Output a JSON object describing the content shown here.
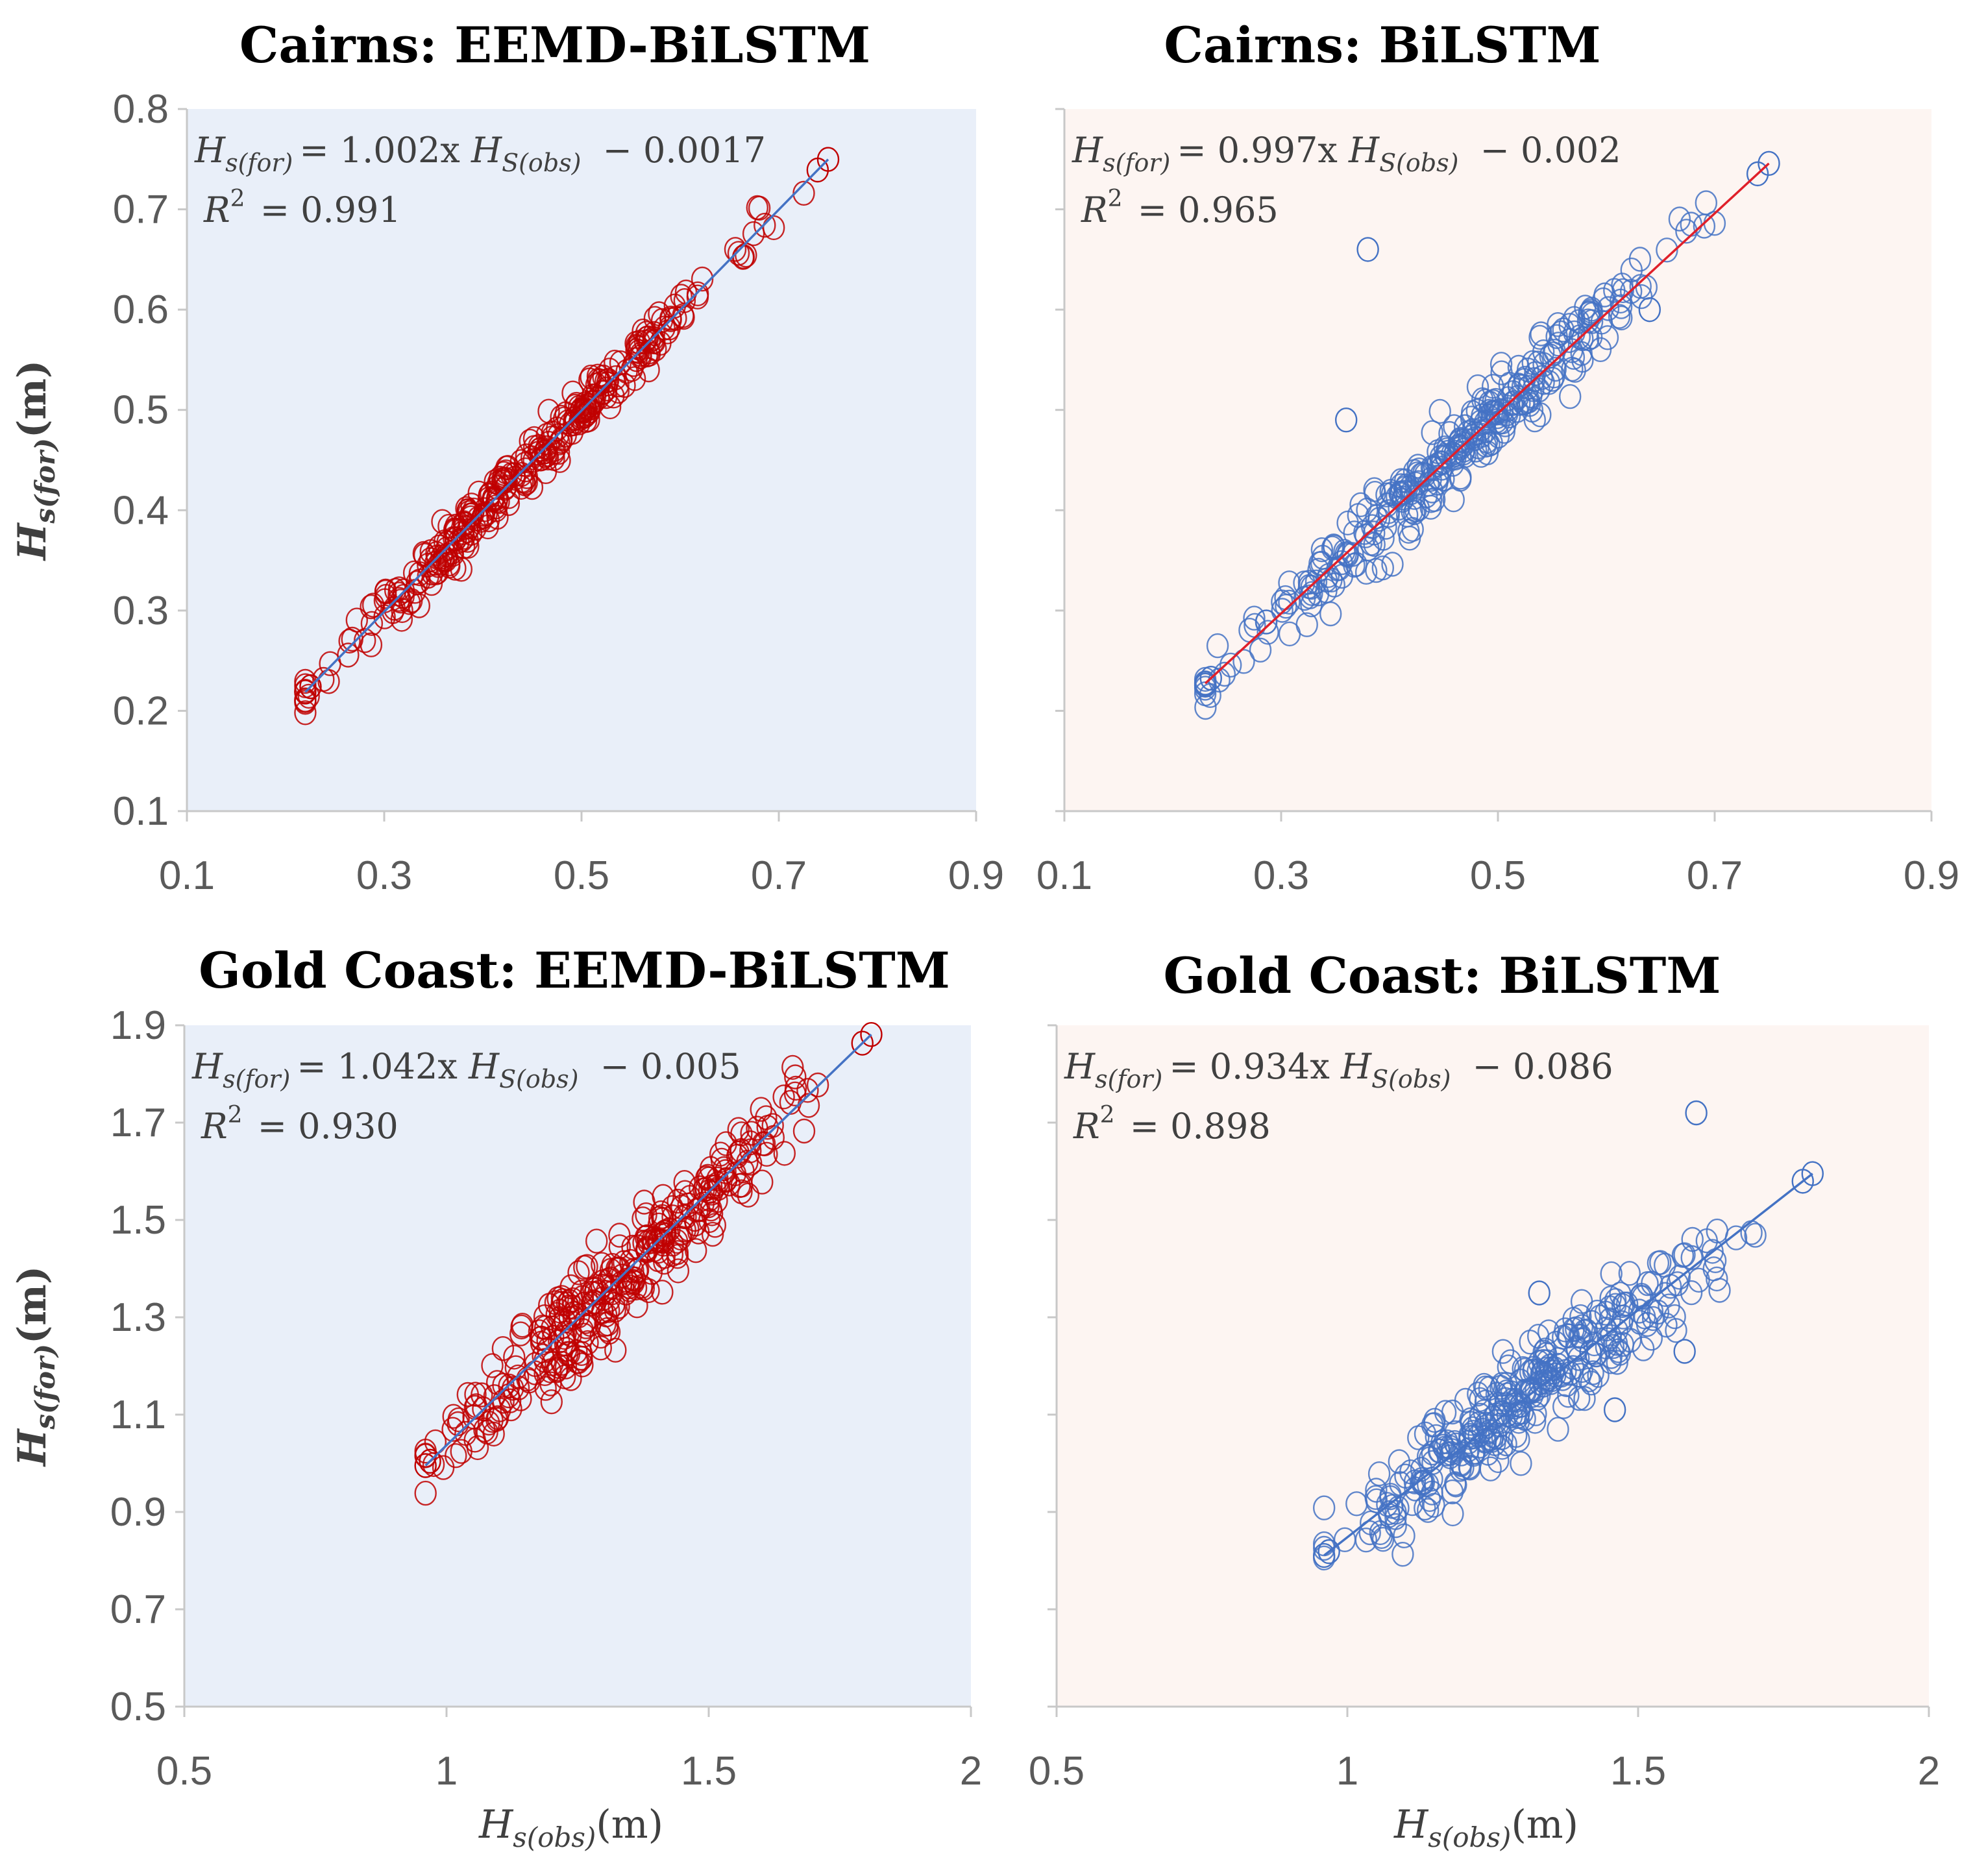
{
  "figure": {
    "ylabel": "H",
    "ylabel_sub": "s(for)",
    "ylabel_unit": "(m)",
    "xlabel": "H",
    "xlabel_sub": "s(obs)",
    "xlabel_unit": "(m)"
  },
  "chart_data": [
    {
      "type": "scatter",
      "title": "Cairns: EEMD-BiLSTM",
      "xlim": [
        0.1,
        0.9
      ],
      "ylim": [
        0.1,
        0.8
      ],
      "xticks": [
        "0.1",
        "0.3",
        "0.5",
        "0.7",
        "0.9"
      ],
      "yticks": [
        "0.1",
        "0.2",
        "0.3",
        "0.4",
        "0.5",
        "0.6",
        "0.7",
        "0.8"
      ],
      "show_yticks": true,
      "show_xlabel": false,
      "bg": "#e9eff9",
      "point_color": "#c00000",
      "line_color": "#4472c4",
      "slope": 1.002,
      "intercept": -0.0017,
      "r2": "0.991",
      "spread": 0.012,
      "x_range": [
        0.22,
        0.75
      ],
      "n": 320,
      "seed": 11,
      "eq_text": "Hs(for) = 1.002x HS(obs) − 0.0017",
      "eq_parts": {
        "lhs": "= 1.002x ",
        "rhs": " − 0.0017"
      },
      "r2_text": "R² = 0.991"
    },
    {
      "type": "scatter",
      "title": "Cairns: BiLSTM",
      "xlim": [
        0.1,
        0.9
      ],
      "ylim": [
        0.1,
        0.8
      ],
      "xticks": [
        "0.1",
        "0.3",
        "0.5",
        "0.7",
        "0.9"
      ],
      "yticks": [
        "0.1",
        "0.2",
        "0.3",
        "0.4",
        "0.5",
        "0.6",
        "0.7",
        "0.8"
      ],
      "show_yticks": false,
      "show_xlabel": false,
      "bg": "#fdf5f2",
      "point_color": "#4472c4",
      "line_color": "#e0202a",
      "slope": 0.997,
      "intercept": -0.002,
      "r2": "0.965",
      "spread": 0.018,
      "x_range": [
        0.23,
        0.75
      ],
      "n": 320,
      "seed": 23,
      "outliers": [
        [
          0.38,
          0.66
        ],
        [
          0.36,
          0.49
        ],
        [
          0.64,
          0.6
        ]
      ],
      "eq_text": "Hs(for) = 0.997x HS(obs) − 0.002",
      "eq_parts": {
        "lhs": "= 0.997x ",
        "rhs": " − 0.002"
      },
      "r2_text": "R² = 0.965"
    },
    {
      "type": "scatter",
      "title": "Gold Coast: EEMD-BiLSTM",
      "xlim": [
        0.5,
        2.0
      ],
      "ylim": [
        0.5,
        1.9
      ],
      "xticks": [
        "0.5",
        "1",
        "1.5",
        "2"
      ],
      "yticks": [
        "0.5",
        "0.7",
        "0.9",
        "1.1",
        "1.3",
        "1.5",
        "1.7",
        "1.9"
      ],
      "show_yticks": true,
      "show_xlabel": true,
      "bg": "#e9eff9",
      "point_color": "#c00000",
      "line_color": "#4472c4",
      "slope": 1.042,
      "intercept": -0.005,
      "r2": "0.930",
      "spread": 0.05,
      "x_range": [
        0.96,
        1.81
      ],
      "n": 320,
      "seed": 37,
      "eq_text": "Hs(for) = 1.042x HS(obs) − 0.005",
      "eq_parts": {
        "lhs": "= 1.042x ",
        "rhs": " − 0.005"
      },
      "r2_text": "R² = 0.930"
    },
    {
      "type": "scatter",
      "title": "Gold Coast: BiLSTM",
      "xlim": [
        0.5,
        2.0
      ],
      "ylim": [
        0.5,
        1.9
      ],
      "xticks": [
        "0.5",
        "1",
        "1.5",
        "2"
      ],
      "yticks": [
        "0.5",
        "0.7",
        "0.9",
        "1.1",
        "1.3",
        "1.5",
        "1.7",
        "1.9"
      ],
      "show_yticks": false,
      "show_xlabel": true,
      "bg": "#fdf5f2",
      "point_color": "#4472c4",
      "line_color": "#4472c4",
      "slope": 0.934,
      "intercept": -0.086,
      "r2": "0.898",
      "spread": 0.05,
      "x_range": [
        0.96,
        1.8
      ],
      "n": 320,
      "seed": 51,
      "outliers": [
        [
          1.6,
          1.72
        ],
        [
          1.46,
          1.11
        ],
        [
          1.58,
          1.23
        ],
        [
          1.33,
          1.35
        ]
      ],
      "eq_text": "Hs(for) = 0.934x HS(obs) − 0.086",
      "eq_parts": {
        "lhs": "= 0.934x ",
        "rhs": " − 0.086"
      },
      "r2_text": "R² = 0.898"
    }
  ]
}
